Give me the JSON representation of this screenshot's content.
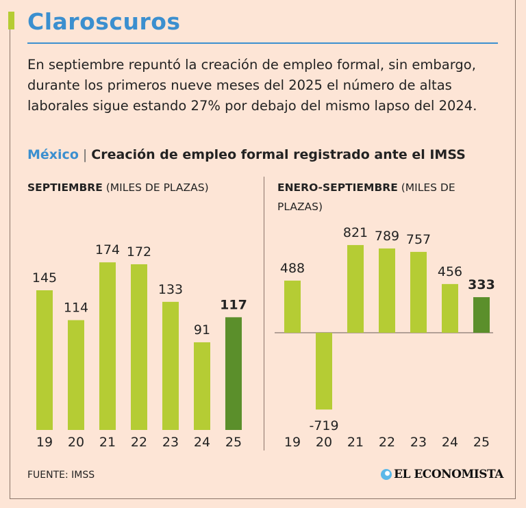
{
  "header": {
    "title": "Claroscuros",
    "description": "En septiembre repuntó la creación de empleo formal, sin embargo, durante los primeros nueve meses del 2025 el número de altas laborales sigue estando 27% por debajo del mismo lapso del 2024."
  },
  "subtitle": {
    "country": "México",
    "separator": "|",
    "text": "Creación de empleo formal registrado ante el IMSS"
  },
  "colors": {
    "bar": "#b5cc34",
    "highlight": "#5b8f2b",
    "accent": "#3b8fcf",
    "background": "#fde5d6"
  },
  "chart_data": [
    {
      "type": "bar",
      "title_bold": "SEPTIEMBRE",
      "title_rest": " (MILES DE PLAZAS)",
      "categories": [
        "19",
        "20",
        "21",
        "22",
        "23",
        "24",
        "25"
      ],
      "values": [
        145,
        114,
        174,
        172,
        133,
        91,
        117
      ],
      "highlight_index": 6,
      "ylim": [
        0,
        200
      ],
      "grid": false
    },
    {
      "type": "bar",
      "title_bold": "ENERO-SEPTIEMBRE",
      "title_rest": " (MILES DE PLAZAS)",
      "categories": [
        "19",
        "20",
        "21",
        "22",
        "23",
        "24",
        "25"
      ],
      "values": [
        488,
        -719,
        821,
        789,
        757,
        456,
        333
      ],
      "highlight_index": 6,
      "ylim": [
        -800,
        900
      ],
      "grid": false
    }
  ],
  "footer": {
    "source": "FUENTE: IMSS",
    "logo": "EL ECONOMISTA"
  }
}
